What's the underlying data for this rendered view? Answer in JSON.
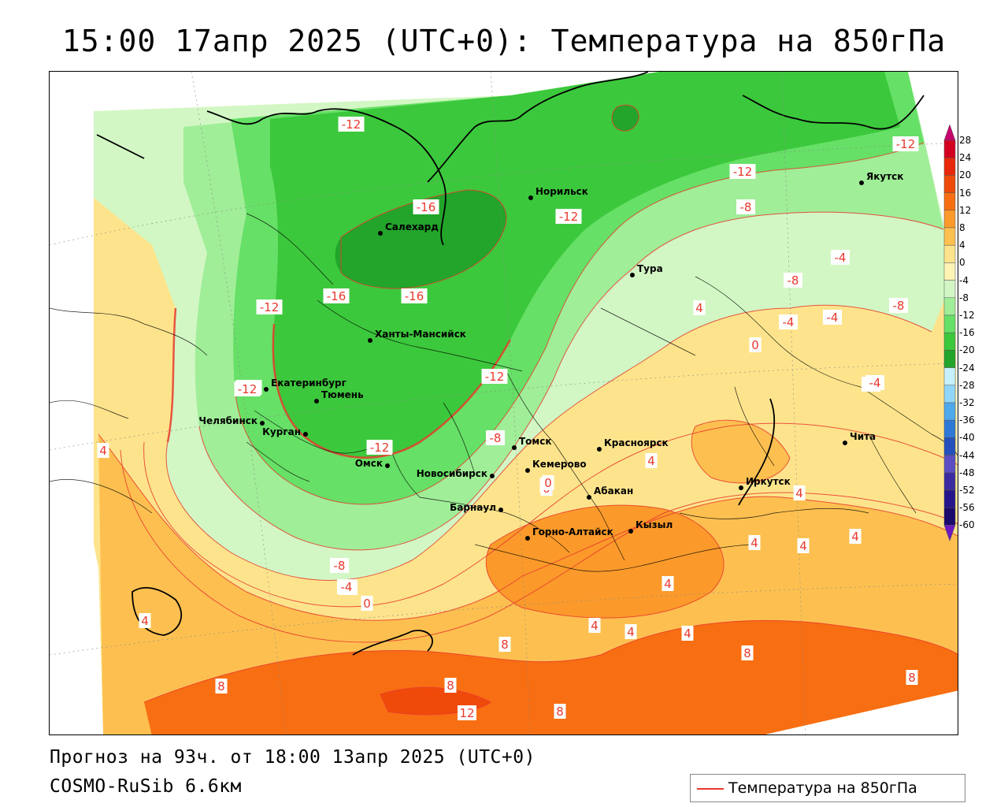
{
  "title": "15:00 17апр 2025 (UTC+0): Температура на 850гПа",
  "forecast_info": "Прогноз на 93ч. от 18:00 13апр 2025 (UTC+0)",
  "model_info": "COSMO-RuSib 6.6км",
  "legend": {
    "label": "Температура на 850гПа",
    "line_color": "#e8392e"
  },
  "colorbar": {
    "labels": [
      "28",
      "24",
      "20",
      "16",
      "12",
      "8",
      "4",
      "0",
      "-4",
      "-8",
      "-12",
      "-16",
      "-20",
      "-24",
      "-28",
      "-32",
      "-36",
      "-40",
      "-44",
      "-48",
      "-52",
      "-56",
      "-60"
    ],
    "colors": [
      "#c8006e",
      "#d40020",
      "#e8280a",
      "#f04a0a",
      "#f86e12",
      "#fb9a2a",
      "#fdc050",
      "#fde48c",
      "#fff4b4",
      "#d2f7c4",
      "#a0ee98",
      "#66e066",
      "#3cc83c",
      "#22a52a",
      "#c6f0fa",
      "#90d6f8",
      "#4ea8ec",
      "#2e78d8",
      "#2450bc",
      "#5a4ec2",
      "#3a2ca0",
      "#24168a",
      "#1a0a6c",
      "#6a1ac0"
    ]
  },
  "cities": [
    {
      "name": "Салехард"
    },
    {
      "name": "Норильск"
    },
    {
      "name": "Тура"
    },
    {
      "name": "Якутск"
    },
    {
      "name": "Ханты-Мансийск"
    },
    {
      "name": "Екатеринбург"
    },
    {
      "name": "Тюмень"
    },
    {
      "name": "Челябинск"
    },
    {
      "name": "Курган"
    },
    {
      "name": "Омск"
    },
    {
      "name": "Новосибирск"
    },
    {
      "name": "Томск"
    },
    {
      "name": "Кемерово"
    },
    {
      "name": "Красноярск"
    },
    {
      "name": "Барнаул"
    },
    {
      "name": "Абакан"
    },
    {
      "name": "Горно-Алтайск"
    },
    {
      "name": "Кызыл"
    },
    {
      "name": "Иркутск"
    },
    {
      "name": "Чита"
    }
  ],
  "isotherm_labels": [
    "-12",
    "-16",
    "-16",
    "-16",
    "-12",
    "-12",
    "-12",
    "-12",
    "-8",
    "-12",
    "-12",
    "-8",
    "-8",
    "-4",
    "-4",
    "-4",
    "-4",
    "-4",
    "0",
    "0",
    "0",
    "4",
    "4",
    "4",
    "4",
    "4",
    "4",
    "8",
    "8",
    "8",
    "8",
    "12",
    "-8",
    "-4",
    "0",
    "4",
    "4",
    "-12",
    "0",
    "-8",
    "-12",
    "4",
    "4",
    "8",
    "8",
    "4",
    "4",
    "-4"
  ],
  "palette": {
    "very_cold": "#22a52a",
    "cold": "#3cc83c",
    "cool": "#66e066",
    "mild_cold": "#a0ee98",
    "near_zero_cold": "#d2f7c4",
    "near_zero_warm": "#fff4b4",
    "warm_light": "#fde48c",
    "warm": "#fdc050",
    "hot": "#fb9a2a",
    "hotter": "#f86e12",
    "hottest": "#f04a0a",
    "darkest_green": "#189020"
  }
}
